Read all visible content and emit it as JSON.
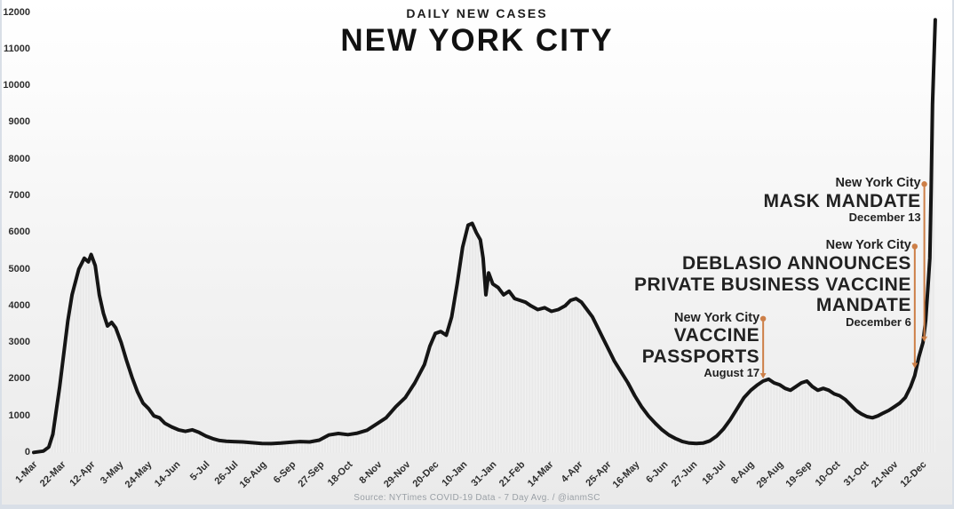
{
  "page": {
    "subtitle": "DAILY NEW CASES",
    "title": "NEW YORK CITY",
    "source": "Source: NYTimes COVID-19 Data - 7 Day Avg. / @ianmSC"
  },
  "colors": {
    "line": "#151515",
    "area": "#e9e9e9",
    "annotation_accent": "#cd7f47",
    "axis_text": "#2e2e2e"
  },
  "chart_data": {
    "type": "area",
    "title": "DAILY NEW CASES",
    "subtitle": "NEW YORK CITY",
    "xlabel": "",
    "ylabel": "",
    "ylim": [
      0,
      12000
    ],
    "yticks": [
      0,
      1000,
      2000,
      3000,
      4000,
      5000,
      6000,
      7000,
      8000,
      9000,
      10000,
      11000,
      12000
    ],
    "x_start_date": "2020-03-01",
    "xtick_interval_days": 21,
    "xtick_labels": [
      "1-Mar",
      "22-Mar",
      "12-Apr",
      "3-May",
      "24-May",
      "14-Jun",
      "5-Jul",
      "26-Jul",
      "16-Aug",
      "6-Sep",
      "27-Sep",
      "18-Oct",
      "8-Nov",
      "29-Nov",
      "20-Dec",
      "10-Jan",
      "31-Jan",
      "21-Feb",
      "14-Mar",
      "4-Apr",
      "25-Apr",
      "16-May",
      "6-Jun",
      "27-Jun",
      "18-Jul",
      "8-Aug",
      "29-Aug",
      "19-Sep",
      "10-Oct",
      "31-Oct",
      "21-Nov",
      "12-Dec"
    ],
    "grid": false,
    "legend": false,
    "series": [
      {
        "name": "Daily new cases (7-day avg)",
        "points": [
          [
            "2020-03-01",
            5
          ],
          [
            "2020-03-08",
            40
          ],
          [
            "2020-03-12",
            150
          ],
          [
            "2020-03-15",
            500
          ],
          [
            "2020-03-20",
            1800
          ],
          [
            "2020-03-23",
            2700
          ],
          [
            "2020-03-26",
            3600
          ],
          [
            "2020-03-29",
            4300
          ],
          [
            "2020-04-03",
            5000
          ],
          [
            "2020-04-07",
            5300
          ],
          [
            "2020-04-10",
            5200
          ],
          [
            "2020-04-12",
            5400
          ],
          [
            "2020-04-15",
            5100
          ],
          [
            "2020-04-18",
            4300
          ],
          [
            "2020-04-21",
            3800
          ],
          [
            "2020-04-24",
            3450
          ],
          [
            "2020-04-27",
            3550
          ],
          [
            "2020-04-30",
            3400
          ],
          [
            "2020-05-04",
            3000
          ],
          [
            "2020-05-08",
            2500
          ],
          [
            "2020-05-12",
            2050
          ],
          [
            "2020-05-16",
            1650
          ],
          [
            "2020-05-20",
            1350
          ],
          [
            "2020-05-24",
            1200
          ],
          [
            "2020-05-28",
            1000
          ],
          [
            "2020-06-01",
            950
          ],
          [
            "2020-06-05",
            800
          ],
          [
            "2020-06-10",
            700
          ],
          [
            "2020-06-15",
            620
          ],
          [
            "2020-06-20",
            580
          ],
          [
            "2020-06-25",
            620
          ],
          [
            "2020-06-30",
            550
          ],
          [
            "2020-07-05",
            450
          ],
          [
            "2020-07-10",
            380
          ],
          [
            "2020-07-15",
            330
          ],
          [
            "2020-07-20",
            310
          ],
          [
            "2020-07-25",
            300
          ],
          [
            "2020-08-01",
            290
          ],
          [
            "2020-08-08",
            270
          ],
          [
            "2020-08-15",
            250
          ],
          [
            "2020-08-22",
            245
          ],
          [
            "2020-08-29",
            260
          ],
          [
            "2020-09-05",
            280
          ],
          [
            "2020-09-12",
            300
          ],
          [
            "2020-09-19",
            290
          ],
          [
            "2020-09-26",
            340
          ],
          [
            "2020-10-03",
            480
          ],
          [
            "2020-10-10",
            520
          ],
          [
            "2020-10-17",
            490
          ],
          [
            "2020-10-24",
            530
          ],
          [
            "2020-10-31",
            610
          ],
          [
            "2020-11-07",
            780
          ],
          [
            "2020-11-14",
            950
          ],
          [
            "2020-11-21",
            1250
          ],
          [
            "2020-11-28",
            1500
          ],
          [
            "2020-12-05",
            1900
          ],
          [
            "2020-12-12",
            2400
          ],
          [
            "2020-12-16",
            2900
          ],
          [
            "2020-12-20",
            3250
          ],
          [
            "2020-12-24",
            3300
          ],
          [
            "2020-12-28",
            3200
          ],
          [
            "2021-01-01",
            3700
          ],
          [
            "2021-01-05",
            4600
          ],
          [
            "2021-01-09",
            5600
          ],
          [
            "2021-01-13",
            6200
          ],
          [
            "2021-01-16",
            6250
          ],
          [
            "2021-01-19",
            6000
          ],
          [
            "2021-01-22",
            5800
          ],
          [
            "2021-01-24",
            5300
          ],
          [
            "2021-01-26",
            4300
          ],
          [
            "2021-01-28",
            4900
          ],
          [
            "2021-01-31",
            4600
          ],
          [
            "2021-02-04",
            4500
          ],
          [
            "2021-02-08",
            4300
          ],
          [
            "2021-02-12",
            4400
          ],
          [
            "2021-02-16",
            4200
          ],
          [
            "2021-02-20",
            4150
          ],
          [
            "2021-02-24",
            4100
          ],
          [
            "2021-02-28",
            4000
          ],
          [
            "2021-03-05",
            3900
          ],
          [
            "2021-03-10",
            3950
          ],
          [
            "2021-03-15",
            3850
          ],
          [
            "2021-03-20",
            3900
          ],
          [
            "2021-03-25",
            4000
          ],
          [
            "2021-03-29",
            4150
          ],
          [
            "2021-04-02",
            4200
          ],
          [
            "2021-04-06",
            4100
          ],
          [
            "2021-04-10",
            3900
          ],
          [
            "2021-04-14",
            3700
          ],
          [
            "2021-04-18",
            3400
          ],
          [
            "2021-04-22",
            3100
          ],
          [
            "2021-04-26",
            2800
          ],
          [
            "2021-04-30",
            2500
          ],
          [
            "2021-05-05",
            2200
          ],
          [
            "2021-05-10",
            1900
          ],
          [
            "2021-05-15",
            1550
          ],
          [
            "2021-05-20",
            1250
          ],
          [
            "2021-05-25",
            1000
          ],
          [
            "2021-05-30",
            800
          ],
          [
            "2021-06-04",
            620
          ],
          [
            "2021-06-09",
            480
          ],
          [
            "2021-06-14",
            380
          ],
          [
            "2021-06-19",
            300
          ],
          [
            "2021-06-24",
            260
          ],
          [
            "2021-06-29",
            250
          ],
          [
            "2021-07-04",
            260
          ],
          [
            "2021-07-09",
            320
          ],
          [
            "2021-07-14",
            450
          ],
          [
            "2021-07-19",
            650
          ],
          [
            "2021-07-24",
            900
          ],
          [
            "2021-07-29",
            1200
          ],
          [
            "2021-08-03",
            1500
          ],
          [
            "2021-08-08",
            1700
          ],
          [
            "2021-08-13",
            1850
          ],
          [
            "2021-08-17",
            1950
          ],
          [
            "2021-08-21",
            2000
          ],
          [
            "2021-08-25",
            1900
          ],
          [
            "2021-08-29",
            1850
          ],
          [
            "2021-09-02",
            1750
          ],
          [
            "2021-09-06",
            1700
          ],
          [
            "2021-09-10",
            1800
          ],
          [
            "2021-09-14",
            1900
          ],
          [
            "2021-09-18",
            1950
          ],
          [
            "2021-09-22",
            1800
          ],
          [
            "2021-09-26",
            1700
          ],
          [
            "2021-09-30",
            1750
          ],
          [
            "2021-10-04",
            1700
          ],
          [
            "2021-10-08",
            1600
          ],
          [
            "2021-10-12",
            1550
          ],
          [
            "2021-10-16",
            1450
          ],
          [
            "2021-10-20",
            1300
          ],
          [
            "2021-10-24",
            1150
          ],
          [
            "2021-10-28",
            1050
          ],
          [
            "2021-11-01",
            980
          ],
          [
            "2021-11-05",
            950
          ],
          [
            "2021-11-09",
            1000
          ],
          [
            "2021-11-13",
            1080
          ],
          [
            "2021-11-17",
            1150
          ],
          [
            "2021-11-21",
            1250
          ],
          [
            "2021-11-25",
            1350
          ],
          [
            "2021-11-29",
            1500
          ],
          [
            "2021-12-03",
            1800
          ],
          [
            "2021-12-06",
            2100
          ],
          [
            "2021-12-09",
            2600
          ],
          [
            "2021-12-12",
            3000
          ],
          [
            "2021-12-14",
            3600
          ],
          [
            "2021-12-16",
            4700
          ],
          [
            "2021-12-17",
            5300
          ],
          [
            "2021-12-18",
            7200
          ],
          [
            "2021-12-19",
            9500
          ],
          [
            "2021-12-21",
            11800
          ]
        ]
      }
    ],
    "annotations": [
      {
        "city_line": "New York City",
        "title_lines": [
          "VACCINE",
          "PASSPORTS"
        ],
        "date_label": "August 17",
        "date": "2021-08-17",
        "arrow_top_value": 3650,
        "arrow_bottom_value": 2020
      },
      {
        "city_line": "New York City",
        "title_lines": [
          "DEBLASIO ANNOUNCES",
          "PRIVATE BUSINESS VACCINE",
          "MANDATE"
        ],
        "date_label": "December 6",
        "date": "2021-12-06",
        "arrow_top_value": 5620,
        "arrow_bottom_value": 2300
      },
      {
        "city_line": "New York City",
        "title_lines": [
          "MASK MANDATE"
        ],
        "date_label": "December 13",
        "date": "2021-12-13",
        "arrow_top_value": 7320,
        "arrow_bottom_value": 3020
      }
    ]
  }
}
